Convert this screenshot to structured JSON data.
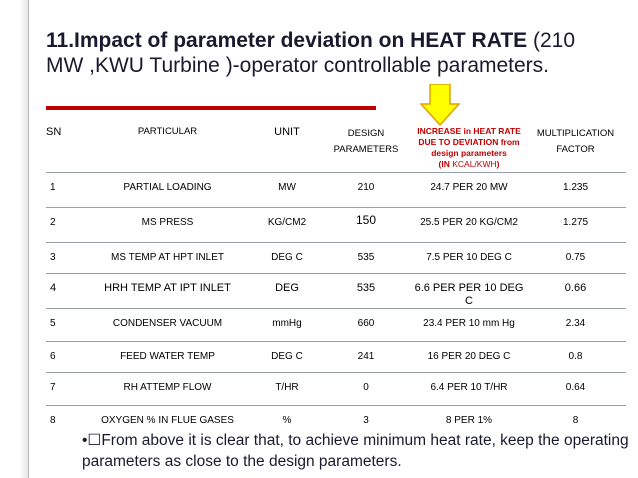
{
  "title": {
    "bold": "11.Impact of parameter deviation on HEAT RATE",
    "normal": " (210 MW ,KWU Turbine )-operator controllable parameters."
  },
  "colors": {
    "accent": "#c00000",
    "arrow_fill": "#ffff00",
    "arrow_stroke": "#e0a000"
  },
  "table": {
    "headers": {
      "sn": "SN",
      "particular": "PARTICULAR",
      "unit": "UNIT",
      "design": "DESIGN PARAMETERS",
      "increase_main": "INCREASE in  HEAT RATE DUE TO DEVIATION from design parameters",
      "increase_prefix": "(IN ",
      "increase_unit": "KCAL/KWH",
      "increase_suffix": ")",
      "factor": "MULTIPLICATION FACTOR"
    },
    "rows": [
      {
        "sn": "1",
        "particular": "PARTIAL LOADING",
        "unit": "MW",
        "design": "210",
        "increase": "24.7 PER 20 MW",
        "factor": "1.235"
      },
      {
        "sn": "2",
        "particular": "MS PRESS",
        "unit": "KG/CM2",
        "design": "150",
        "increase": "25.5 PER 20 KG/CM2",
        "factor": "1.275"
      },
      {
        "sn": "3",
        "particular": "MS TEMP AT HPT INLET",
        "unit": "DEG C",
        "design": "535",
        "increase": "7.5 PER 10 DEG C",
        "factor": "0.75"
      },
      {
        "sn": "4",
        "particular": "HRH TEMP AT IPT INLET",
        "unit": "DEG",
        "design": "535",
        "increase": "6.6 PER PER 10 DEG C",
        "factor": "0.66"
      },
      {
        "sn": "5",
        "particular": "CONDENSER VACUUM",
        "unit": "mmHg",
        "design": "660",
        "increase": "23.4 PER 10 mm Hg",
        "factor": "2.34"
      },
      {
        "sn": "6",
        "particular": "FEED WATER TEMP",
        "unit": "DEG C",
        "design": "241",
        "increase": "16 PER 20 DEG C",
        "factor": "0.8"
      },
      {
        "sn": "7",
        "particular": "RH ATTEMP FLOW",
        "unit": "T/HR",
        "design": "0",
        "increase": "6.4 PER 10 T/HR",
        "factor": "0.64"
      },
      {
        "sn": "8",
        "particular": "OXYGEN  % IN FLUE GASES",
        "unit": "%",
        "design": "3",
        "increase": "8 PER 1%",
        "factor": "8"
      }
    ]
  },
  "note": "•☐From above it is clear that, to achieve minimum heat rate, keep the operating parameters as close to the design parameters."
}
